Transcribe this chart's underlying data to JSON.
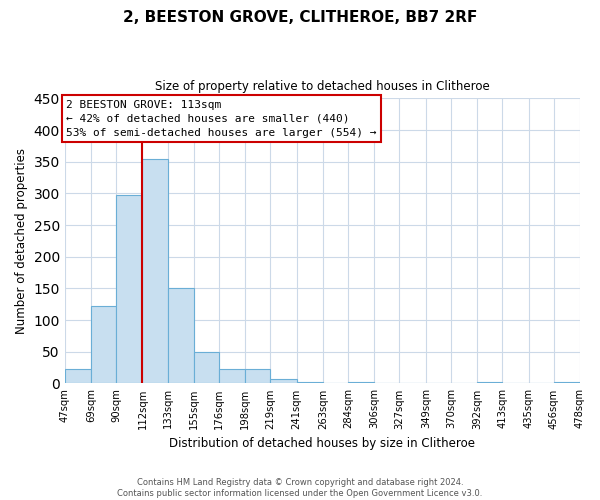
{
  "title": "2, BEESTON GROVE, CLITHEROE, BB7 2RF",
  "subtitle": "Size of property relative to detached houses in Clitheroe",
  "xlabel": "Distribution of detached houses by size in Clitheroe",
  "ylabel": "Number of detached properties",
  "bar_left_edges": [
    47,
    69,
    90,
    112,
    133,
    155,
    176,
    198,
    219,
    241,
    263,
    284,
    306,
    327,
    349,
    370,
    392,
    413,
    435,
    456
  ],
  "bar_widths": [
    22,
    21,
    22,
    21,
    22,
    21,
    22,
    21,
    22,
    22,
    21,
    22,
    21,
    22,
    21,
    22,
    21,
    22,
    21,
    22
  ],
  "bar_heights": [
    22,
    123,
    298,
    355,
    150,
    49,
    23,
    23,
    7,
    2,
    0,
    2,
    0,
    0,
    0,
    0,
    2,
    0,
    0,
    2
  ],
  "bar_color": "#c8dff0",
  "bar_edgecolor": "#6aaed6",
  "tick_labels": [
    "47sqm",
    "69sqm",
    "90sqm",
    "112sqm",
    "133sqm",
    "155sqm",
    "176sqm",
    "198sqm",
    "219sqm",
    "241sqm",
    "263sqm",
    "284sqm",
    "306sqm",
    "327sqm",
    "349sqm",
    "370sqm",
    "392sqm",
    "413sqm",
    "435sqm",
    "456sqm",
    "478sqm"
  ],
  "ylim": [
    0,
    450
  ],
  "yticks": [
    0,
    50,
    100,
    150,
    200,
    250,
    300,
    350,
    400,
    450
  ],
  "property_line_x": 112,
  "property_line_color": "#cc0000",
  "annotation_line1": "2 BEESTON GROVE: 113sqm",
  "annotation_line2": "← 42% of detached houses are smaller (440)",
  "annotation_line3": "53% of semi-detached houses are larger (554) →",
  "annotation_box_color": "#ffffff",
  "annotation_box_edgecolor": "#cc0000",
  "footer_text": "Contains HM Land Registry data © Crown copyright and database right 2024.\nContains public sector information licensed under the Open Government Licence v3.0.",
  "background_color": "#ffffff",
  "grid_color": "#ccd9e8"
}
